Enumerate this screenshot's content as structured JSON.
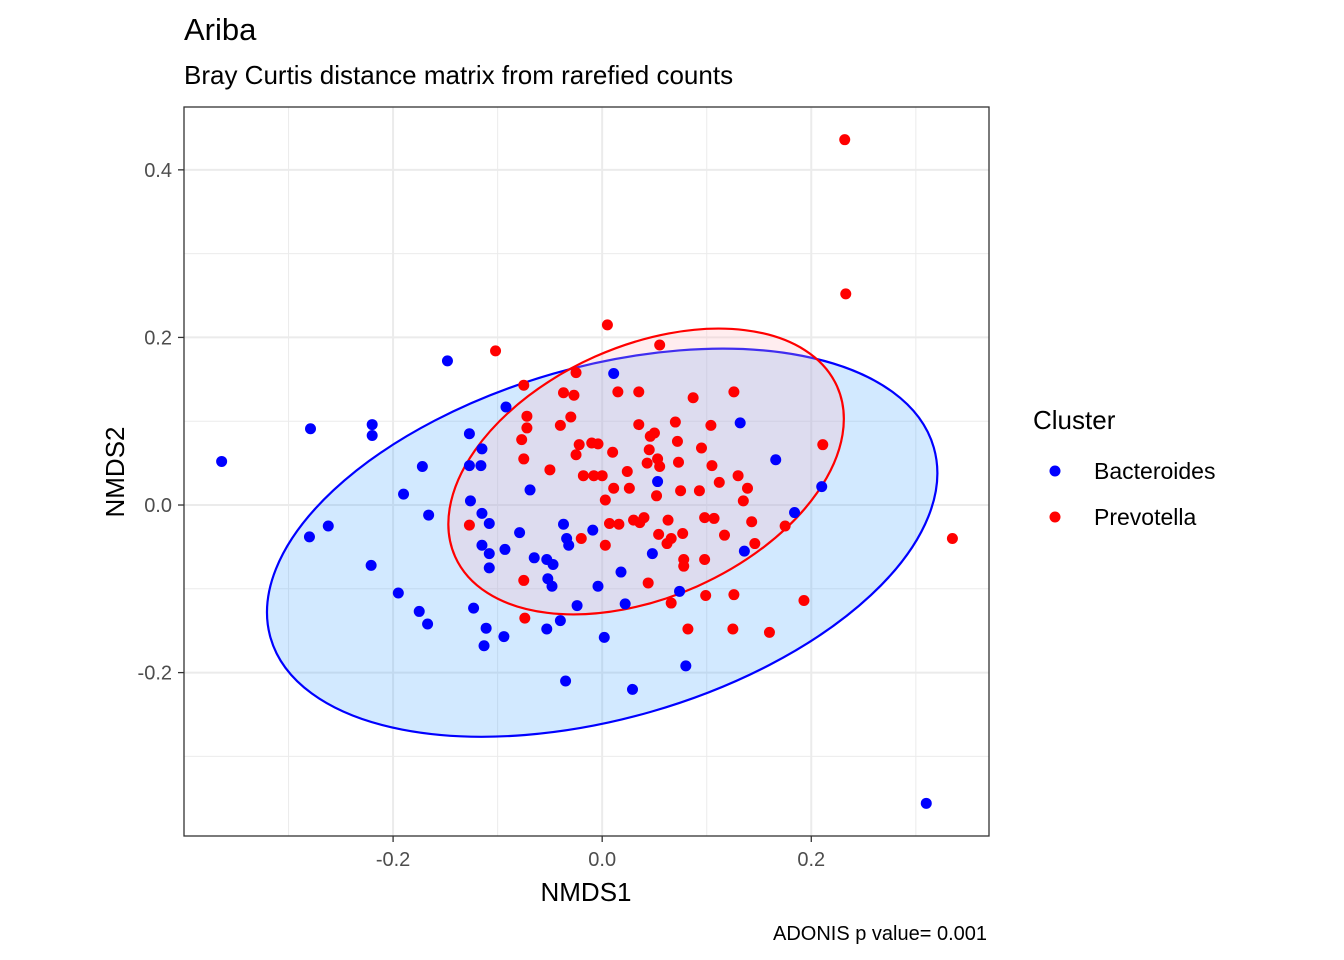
{
  "chart_data": {
    "type": "scatter",
    "title": "Ariba",
    "subtitle": "Bray Curtis distance matrix from rarefied counts",
    "xlabel": "NMDS1",
    "ylabel": "NMDS2",
    "caption": "ADONIS p value= 0.001",
    "xlim": [
      -0.4,
      0.37
    ],
    "ylim": [
      -0.395,
      0.475
    ],
    "x_ticks": [
      -0.2,
      0.0,
      0.2
    ],
    "x_tick_labels": [
      "-0.2",
      "0.0",
      "0.2"
    ],
    "y_ticks": [
      -0.2,
      0.0,
      0.2,
      0.4
    ],
    "y_tick_labels": [
      "-0.2",
      "0.0",
      "0.2",
      "0.4"
    ],
    "grid": true,
    "legend": {
      "title": "Cluster",
      "position": "right"
    },
    "series": [
      {
        "name": "Bacteroides",
        "color": "#0000ff",
        "ellipse": {
          "cx": -0.0,
          "cy": -0.045,
          "rx": 0.33,
          "ry": 0.21,
          "angle_deg": -16
        },
        "points": [
          [
            -0.364,
            0.052
          ],
          [
            -0.279,
            0.091
          ],
          [
            -0.28,
            -0.038
          ],
          [
            -0.262,
            -0.025
          ],
          [
            -0.22,
            0.096
          ],
          [
            -0.22,
            0.083
          ],
          [
            -0.221,
            -0.072
          ],
          [
            -0.19,
            0.013
          ],
          [
            -0.195,
            -0.105
          ],
          [
            -0.175,
            -0.127
          ],
          [
            -0.167,
            -0.142
          ],
          [
            -0.172,
            0.046
          ],
          [
            -0.166,
            -0.012
          ],
          [
            -0.148,
            0.172
          ],
          [
            -0.127,
            0.085
          ],
          [
            -0.127,
            0.047
          ],
          [
            -0.126,
            0.005
          ],
          [
            -0.123,
            -0.123
          ],
          [
            -0.115,
            0.067
          ],
          [
            -0.116,
            0.047
          ],
          [
            -0.115,
            -0.01
          ],
          [
            -0.115,
            -0.048
          ],
          [
            -0.108,
            -0.022
          ],
          [
            -0.108,
            -0.058
          ],
          [
            -0.108,
            -0.075
          ],
          [
            -0.111,
            -0.147
          ],
          [
            -0.113,
            -0.168
          ],
          [
            -0.093,
            -0.053
          ],
          [
            -0.094,
            -0.157
          ],
          [
            -0.092,
            0.117
          ],
          [
            -0.079,
            -0.033
          ],
          [
            -0.069,
            0.018
          ],
          [
            -0.065,
            -0.063
          ],
          [
            -0.053,
            -0.065
          ],
          [
            -0.052,
            -0.088
          ],
          [
            -0.047,
            -0.071
          ],
          [
            -0.048,
            -0.097
          ],
          [
            -0.053,
            -0.148
          ],
          [
            -0.04,
            -0.138
          ],
          [
            -0.037,
            -0.023
          ],
          [
            -0.034,
            -0.04
          ],
          [
            -0.032,
            -0.048
          ],
          [
            -0.035,
            -0.21
          ],
          [
            -0.024,
            -0.12
          ],
          [
            -0.009,
            -0.03
          ],
          [
            -0.004,
            -0.097
          ],
          [
            0.002,
            -0.158
          ],
          [
            0.011,
            0.157
          ],
          [
            0.018,
            -0.08
          ],
          [
            0.022,
            -0.118
          ],
          [
            0.029,
            -0.22
          ],
          [
            0.048,
            -0.058
          ],
          [
            0.053,
            0.028
          ],
          [
            0.074,
            -0.103
          ],
          [
            0.08,
            -0.192
          ],
          [
            0.132,
            0.098
          ],
          [
            0.136,
            -0.055
          ],
          [
            0.166,
            0.054
          ],
          [
            0.184,
            -0.009
          ],
          [
            0.21,
            0.022
          ],
          [
            0.31,
            -0.356
          ]
        ]
      },
      {
        "name": "Prevotella",
        "color": "#ff0000",
        "ellipse": {
          "cx": 0.042,
          "cy": 0.04,
          "rx": 0.2,
          "ry": 0.15,
          "angle_deg": -24
        },
        "points": [
          [
            -0.127,
            -0.024
          ],
          [
            -0.102,
            0.184
          ],
          [
            -0.075,
            0.143
          ],
          [
            -0.077,
            0.078
          ],
          [
            -0.075,
            0.055
          ],
          [
            -0.075,
            -0.09
          ],
          [
            -0.074,
            -0.135
          ],
          [
            -0.072,
            0.092
          ],
          [
            -0.072,
            0.106
          ],
          [
            -0.05,
            0.042
          ],
          [
            -0.04,
            0.095
          ],
          [
            -0.037,
            0.134
          ],
          [
            -0.03,
            0.105
          ],
          [
            -0.027,
            0.131
          ],
          [
            -0.025,
            0.158
          ],
          [
            -0.025,
            0.06
          ],
          [
            -0.022,
            0.072
          ],
          [
            -0.02,
            -0.04
          ],
          [
            -0.018,
            0.035
          ],
          [
            -0.008,
            0.035
          ],
          [
            -0.01,
            0.074
          ],
          [
            -0.004,
            0.073
          ],
          [
            0.0,
            0.035
          ],
          [
            0.003,
            -0.048
          ],
          [
            0.003,
            0.006
          ],
          [
            0.005,
            0.215
          ],
          [
            0.007,
            -0.022
          ],
          [
            0.01,
            0.063
          ],
          [
            0.011,
            0.02
          ],
          [
            0.015,
            0.135
          ],
          [
            0.016,
            -0.023
          ],
          [
            0.024,
            0.04
          ],
          [
            0.026,
            0.02
          ],
          [
            0.03,
            -0.018
          ],
          [
            0.035,
            0.135
          ],
          [
            0.035,
            0.096
          ],
          [
            0.036,
            -0.021
          ],
          [
            0.04,
            -0.015
          ],
          [
            0.043,
            0.05
          ],
          [
            0.044,
            -0.093
          ],
          [
            0.046,
            0.082
          ],
          [
            0.045,
            0.066
          ],
          [
            0.05,
            0.086
          ],
          [
            0.052,
            0.011
          ],
          [
            0.053,
            0.055
          ],
          [
            0.054,
            -0.035
          ],
          [
            0.055,
            0.191
          ],
          [
            0.055,
            0.046
          ],
          [
            0.062,
            -0.046
          ],
          [
            0.063,
            -0.018
          ],
          [
            0.066,
            -0.117
          ],
          [
            0.066,
            -0.04
          ],
          [
            0.07,
            0.099
          ],
          [
            0.072,
            0.076
          ],
          [
            0.073,
            0.051
          ],
          [
            0.075,
            0.017
          ],
          [
            0.077,
            -0.034
          ],
          [
            0.078,
            -0.065
          ],
          [
            0.078,
            -0.073
          ],
          [
            0.082,
            -0.148
          ],
          [
            0.087,
            0.128
          ],
          [
            0.093,
            0.017
          ],
          [
            0.095,
            0.068
          ],
          [
            0.098,
            -0.015
          ],
          [
            0.098,
            -0.065
          ],
          [
            0.099,
            -0.108
          ],
          [
            0.104,
            0.095
          ],
          [
            0.105,
            0.047
          ],
          [
            0.107,
            -0.016
          ],
          [
            0.112,
            0.027
          ],
          [
            0.117,
            -0.036
          ],
          [
            0.126,
            0.135
          ],
          [
            0.126,
            -0.107
          ],
          [
            0.125,
            -0.148
          ],
          [
            0.13,
            0.035
          ],
          [
            0.135,
            0.005
          ],
          [
            0.139,
            0.02
          ],
          [
            0.143,
            -0.02
          ],
          [
            0.146,
            -0.046
          ],
          [
            0.16,
            -0.152
          ],
          [
            0.175,
            -0.025
          ],
          [
            0.193,
            -0.114
          ],
          [
            0.211,
            0.072
          ],
          [
            0.232,
            0.436
          ],
          [
            0.233,
            0.252
          ],
          [
            0.335,
            -0.04
          ]
        ]
      }
    ]
  }
}
